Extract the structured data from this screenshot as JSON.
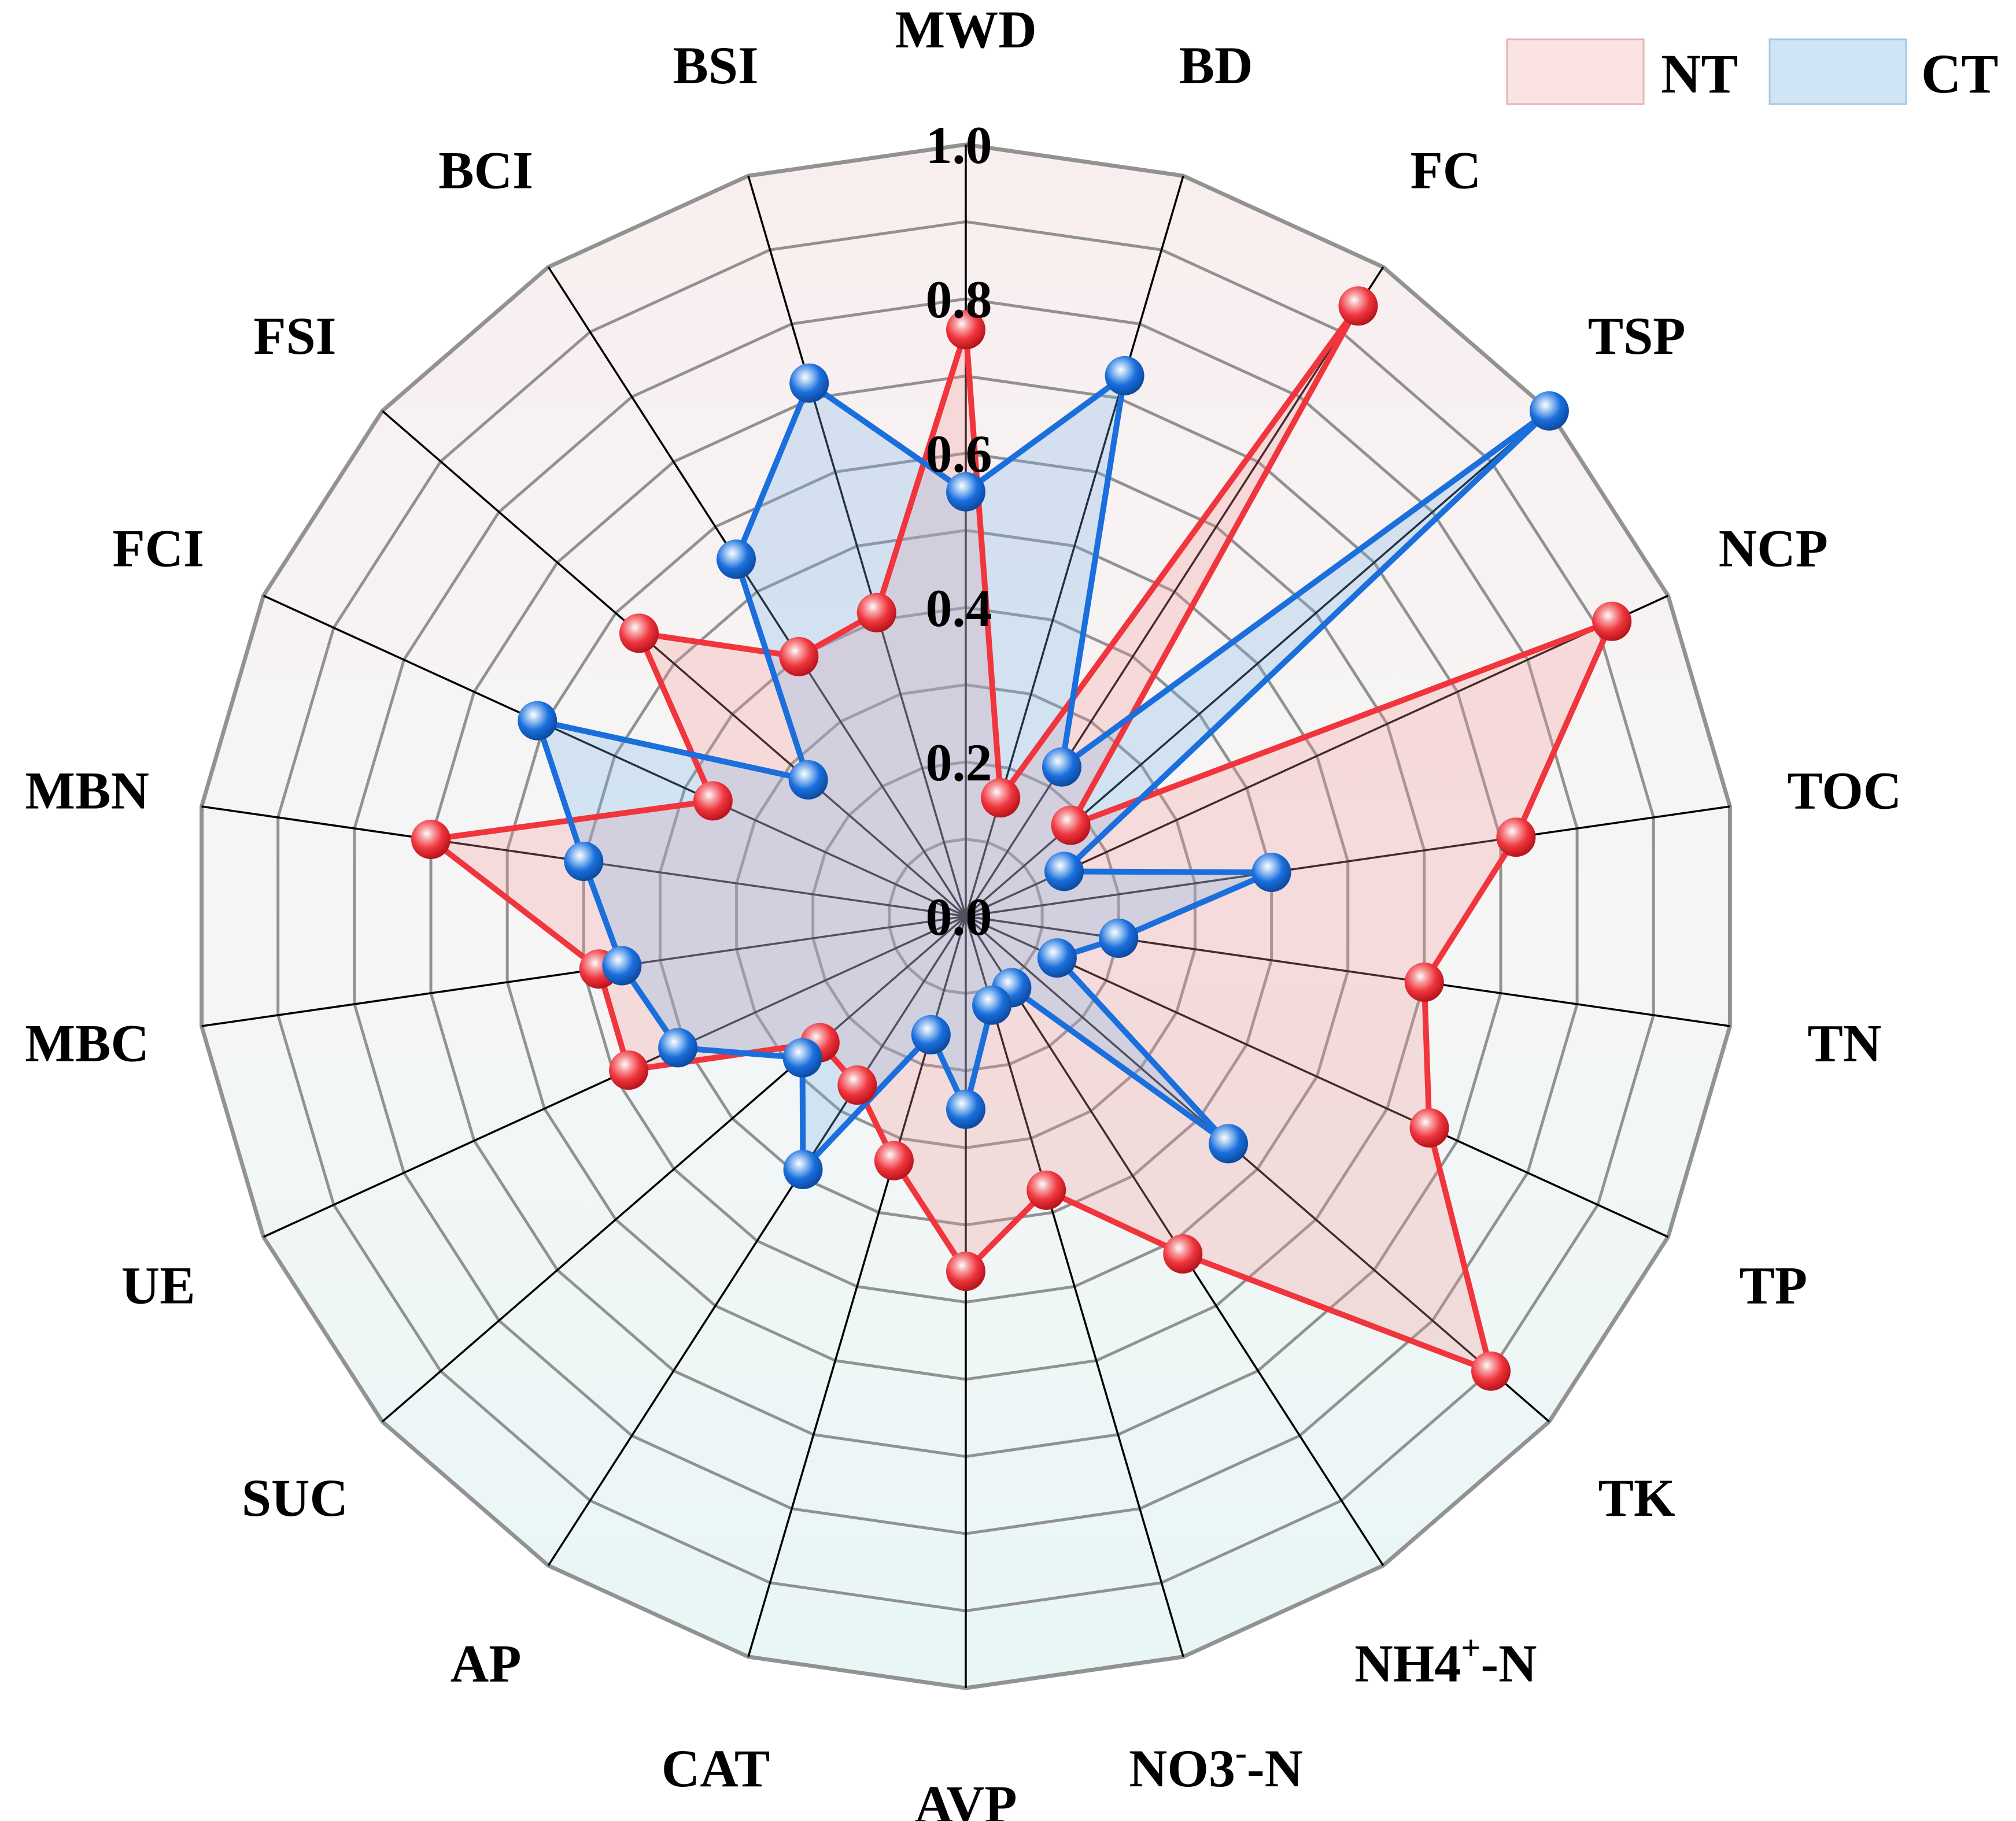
{
  "chart_data": {
    "type": "radar",
    "axes": [
      "MWD",
      "BD",
      "FC",
      "TSP",
      "NCP",
      "TOC",
      "TN",
      "TP",
      "TK",
      "NH4+-N",
      "NO3--N",
      "AVP",
      "CAT",
      "AP",
      "SUC",
      "UE",
      "MBC",
      "MBN",
      "FCI",
      "FSI",
      "BCI",
      "BSI"
    ],
    "axis_labels": [
      {
        "base": "MWD",
        "sup": ""
      },
      {
        "base": "BD",
        "sup": ""
      },
      {
        "base": "FC",
        "sup": ""
      },
      {
        "base": "TSP",
        "sup": ""
      },
      {
        "base": "NCP",
        "sup": ""
      },
      {
        "base": "TOC",
        "sup": ""
      },
      {
        "base": "TN",
        "sup": ""
      },
      {
        "base": "TP",
        "sup": ""
      },
      {
        "base": "TK",
        "sup": ""
      },
      {
        "base": "NH4",
        "sup": "+",
        "tail": "-N"
      },
      {
        "base": "NO3",
        "sup": "-",
        "tail": "-N"
      },
      {
        "base": "AVP",
        "sup": ""
      },
      {
        "base": "CAT",
        "sup": ""
      },
      {
        "base": "AP",
        "sup": ""
      },
      {
        "base": "SUC",
        "sup": ""
      },
      {
        "base": "UE",
        "sup": ""
      },
      {
        "base": "MBC",
        "sup": ""
      },
      {
        "base": "MBN",
        "sup": ""
      },
      {
        "base": "FCI",
        "sup": ""
      },
      {
        "base": "FSI",
        "sup": ""
      },
      {
        "base": "BCI",
        "sup": ""
      },
      {
        "base": "BSI",
        "sup": ""
      }
    ],
    "range": [
      0,
      1
    ],
    "ticks": [
      "0.0",
      "0.2",
      "0.4",
      "0.6",
      "0.8",
      "1.0"
    ],
    "series": [
      {
        "name": "NT",
        "color": "#f0353d",
        "fill": "rgba(245,150,150,0.28)",
        "values": [
          0.76,
          0.16,
          0.94,
          0.18,
          0.92,
          0.72,
          0.6,
          0.66,
          0.9,
          0.52,
          0.37,
          0.46,
          0.33,
          0.26,
          0.25,
          0.48,
          0.48,
          0.7,
          0.36,
          0.56,
          0.4,
          0.41
        ]
      },
      {
        "name": "CT",
        "color": "#1a6fdd",
        "fill": "rgba(120,180,235,0.28)",
        "values": [
          0.55,
          0.73,
          0.23,
          1.0,
          0.14,
          0.4,
          0.2,
          0.13,
          0.45,
          0.11,
          0.12,
          0.25,
          0.16,
          0.39,
          0.28,
          0.41,
          0.45,
          0.5,
          0.61,
          0.27,
          0.55,
          0.72
        ]
      }
    ],
    "legend": {
      "position": "top-right",
      "entries": [
        "NT",
        "CT"
      ]
    },
    "grid": true,
    "background_gradient": [
      "#f9eeee",
      "#f6f6f6",
      "#e8f6f6"
    ],
    "grid_color": "#808080"
  }
}
